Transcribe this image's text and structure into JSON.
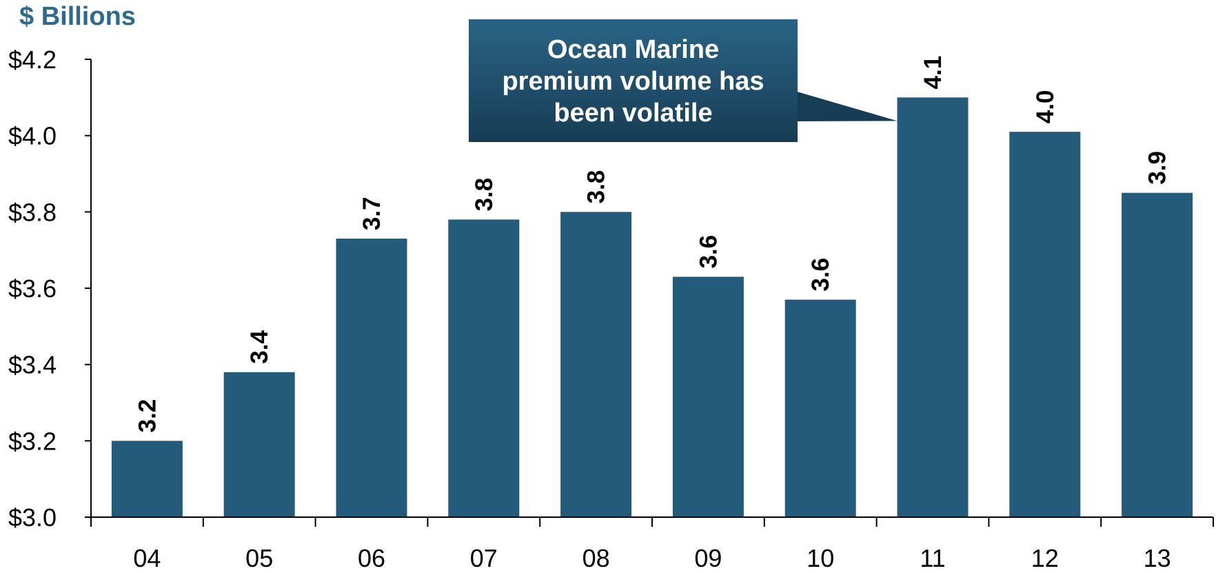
{
  "chart_data": {
    "type": "bar",
    "unit_label": "$ Billions",
    "categories": [
      "04",
      "05",
      "06",
      "07",
      "08",
      "09",
      "10",
      "11",
      "12",
      "13"
    ],
    "values": [
      3.2,
      3.38,
      3.73,
      3.78,
      3.8,
      3.63,
      3.57,
      4.1,
      4.01,
      3.85
    ],
    "value_labels": [
      "3.2",
      "3.4",
      "3.7",
      "3.8",
      "3.8",
      "3.6",
      "3.6",
      "4.1",
      "4.0",
      "3.9"
    ],
    "ylim": [
      3.0,
      4.2
    ],
    "y_ticks": [
      3.0,
      3.2,
      3.4,
      3.6,
      3.8,
      4.0,
      4.2
    ],
    "y_tick_labels": [
      "$3.0",
      "$3.2",
      "$3.4",
      "$3.6",
      "$3.8",
      "$4.0",
      "$4.2"
    ],
    "grid": false,
    "callout": {
      "lines": [
        "Ocean Marine",
        "premium volume has",
        "been volatile"
      ],
      "points_to_category": "11"
    },
    "colors": {
      "bar": "#245a7a",
      "unit_label": "#2e6a8e",
      "callout_top": "#2a6385",
      "callout_bottom": "#173d55",
      "text": "#000000"
    }
  }
}
